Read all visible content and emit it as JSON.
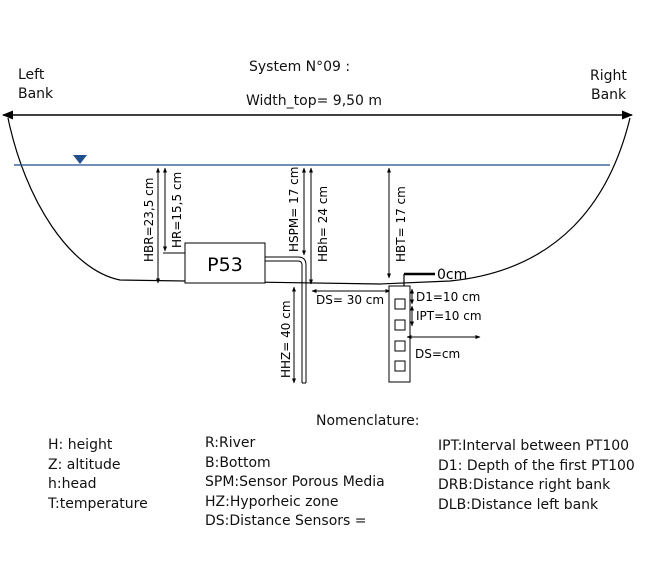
{
  "diagram": {
    "title": "System N°09 :",
    "left_bank": [
      "Left",
      "Bank"
    ],
    "right_bank": [
      "Right",
      "Bank"
    ],
    "width_top": "Width_top= 9,50 m",
    "device_label": "P53",
    "zero_label": "0cm",
    "dims": {
      "hbr": "HBR=23,5 cm",
      "hr": "HR=15,5 cm",
      "hspm": "HSPM= 17 cm",
      "hbh": "HBh= 24 cm",
      "hbt": "HBT= 17 cm",
      "hhz": "HHZ= 40 cm",
      "ds": "DS= 30 cm",
      "d1": "D1=10 cm",
      "ipt": "IPT=10 cm",
      "ds2": "DS=cm"
    },
    "colors": {
      "water": "#1f4e8c",
      "line": "#000000"
    }
  },
  "nomenclature": {
    "heading": "Nomenclature:",
    "col1": [
      "H: height",
      "Z: altitude",
      "h:head",
      "T:temperature"
    ],
    "col2": [
      "R:River",
      "B:Bottom",
      "SPM:Sensor Porous Media",
      "HZ:Hyporheic zone",
      "DS:Distance Sensors ="
    ],
    "col3": [
      "IPT:Interval between PT100",
      "D1: Depth of the first PT100",
      "DRB:Distance right bank",
      "DLB:Distance left bank"
    ]
  }
}
